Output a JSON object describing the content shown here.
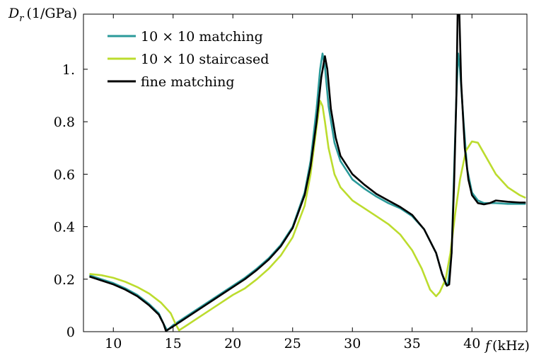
{
  "chart_data": {
    "type": "line",
    "xlabel_var": "f",
    "xlabel_unit": "(kHz)",
    "ylabel_var": "D",
    "ylabel_sub": "r",
    "ylabel_unit": "(1/GPa)",
    "xlim": [
      7.5,
      44.6
    ],
    "ylim": [
      0,
      1.21
    ],
    "xticks": [
      10,
      15,
      20,
      25,
      30,
      35,
      40
    ],
    "yticks": [
      0,
      0.2,
      0.4,
      0.6,
      0.8,
      1.0
    ],
    "ytick_labels": [
      "0",
      "0.2",
      "0.4",
      "0.6",
      "0.8",
      "1."
    ],
    "grid": false,
    "legend_position": "top-left",
    "series": [
      {
        "name": "10 × 10 matching",
        "color": "#2b9a9a",
        "points": [
          [
            8,
            0.215
          ],
          [
            9,
            0.2
          ],
          [
            10,
            0.185
          ],
          [
            11,
            0.165
          ],
          [
            12,
            0.14
          ],
          [
            13,
            0.105
          ],
          [
            13.8,
            0.07
          ],
          [
            14.2,
            0.03
          ],
          [
            14.5,
            0.005
          ],
          [
            15,
            0.025
          ],
          [
            16,
            0.055
          ],
          [
            17,
            0.085
          ],
          [
            18,
            0.115
          ],
          [
            19,
            0.145
          ],
          [
            20,
            0.175
          ],
          [
            21,
            0.205
          ],
          [
            22,
            0.24
          ],
          [
            23,
            0.28
          ],
          [
            24,
            0.33
          ],
          [
            25,
            0.4
          ],
          [
            26,
            0.53
          ],
          [
            26.5,
            0.65
          ],
          [
            27,
            0.85
          ],
          [
            27.3,
            1.0
          ],
          [
            27.5,
            1.06
          ],
          [
            27.7,
            1.01
          ],
          [
            28,
            0.86
          ],
          [
            28.5,
            0.72
          ],
          [
            29,
            0.65
          ],
          [
            30,
            0.58
          ],
          [
            31,
            0.545
          ],
          [
            32,
            0.515
          ],
          [
            33,
            0.49
          ],
          [
            34,
            0.47
          ],
          [
            35,
            0.44
          ],
          [
            36,
            0.39
          ],
          [
            37,
            0.3
          ],
          [
            37.5,
            0.22
          ],
          [
            37.8,
            0.18
          ],
          [
            38,
            0.185
          ],
          [
            38.3,
            0.3
          ],
          [
            38.5,
            0.6
          ],
          [
            38.7,
            0.9
          ],
          [
            38.85,
            1.06
          ],
          [
            39,
            1.0
          ],
          [
            39.3,
            0.8
          ],
          [
            39.6,
            0.62
          ],
          [
            40,
            0.53
          ],
          [
            40.5,
            0.5
          ],
          [
            41,
            0.49
          ],
          [
            42,
            0.49
          ],
          [
            43,
            0.487
          ],
          [
            44,
            0.487
          ],
          [
            44.5,
            0.487
          ]
        ]
      },
      {
        "name": "10 × 10 staircased",
        "color": "#bcdc2e",
        "points": [
          [
            8,
            0.22
          ],
          [
            9,
            0.215
          ],
          [
            10,
            0.205
          ],
          [
            11,
            0.19
          ],
          [
            12,
            0.17
          ],
          [
            13,
            0.145
          ],
          [
            14,
            0.11
          ],
          [
            14.8,
            0.07
          ],
          [
            15.2,
            0.03
          ],
          [
            15.5,
            0.005
          ],
          [
            16,
            0.02
          ],
          [
            17,
            0.05
          ],
          [
            18,
            0.08
          ],
          [
            19,
            0.11
          ],
          [
            20,
            0.14
          ],
          [
            21,
            0.165
          ],
          [
            22,
            0.2
          ],
          [
            23,
            0.24
          ],
          [
            24,
            0.29
          ],
          [
            25,
            0.36
          ],
          [
            26,
            0.48
          ],
          [
            26.5,
            0.6
          ],
          [
            27,
            0.78
          ],
          [
            27.3,
            0.88
          ],
          [
            27.5,
            0.86
          ],
          [
            27.7,
            0.8
          ],
          [
            28,
            0.7
          ],
          [
            28.5,
            0.6
          ],
          [
            29,
            0.55
          ],
          [
            30,
            0.5
          ],
          [
            31,
            0.47
          ],
          [
            32,
            0.44
          ],
          [
            33,
            0.41
          ],
          [
            34,
            0.37
          ],
          [
            35,
            0.31
          ],
          [
            35.8,
            0.24
          ],
          [
            36.5,
            0.16
          ],
          [
            37,
            0.135
          ],
          [
            37.3,
            0.15
          ],
          [
            37.8,
            0.2
          ],
          [
            38.2,
            0.3
          ],
          [
            38.6,
            0.45
          ],
          [
            39,
            0.58
          ],
          [
            39.5,
            0.69
          ],
          [
            40,
            0.725
          ],
          [
            40.5,
            0.72
          ],
          [
            41,
            0.68
          ],
          [
            42,
            0.6
          ],
          [
            43,
            0.55
          ],
          [
            44,
            0.52
          ],
          [
            44.5,
            0.51
          ]
        ]
      },
      {
        "name": "fine matching",
        "color": "#000000",
        "points": [
          [
            8,
            0.21
          ],
          [
            9,
            0.195
          ],
          [
            10,
            0.18
          ],
          [
            11,
            0.16
          ],
          [
            12,
            0.135
          ],
          [
            13,
            0.1
          ],
          [
            13.8,
            0.065
          ],
          [
            14.2,
            0.03
          ],
          [
            14.4,
            0.003
          ],
          [
            15,
            0.02
          ],
          [
            16,
            0.05
          ],
          [
            17,
            0.08
          ],
          [
            18,
            0.11
          ],
          [
            19,
            0.14
          ],
          [
            20,
            0.17
          ],
          [
            21,
            0.2
          ],
          [
            22,
            0.235
          ],
          [
            23,
            0.275
          ],
          [
            24,
            0.325
          ],
          [
            25,
            0.395
          ],
          [
            26,
            0.52
          ],
          [
            26.5,
            0.63
          ],
          [
            27,
            0.8
          ],
          [
            27.4,
            0.97
          ],
          [
            27.7,
            1.05
          ],
          [
            27.9,
            1.0
          ],
          [
            28.2,
            0.85
          ],
          [
            28.6,
            0.74
          ],
          [
            29,
            0.67
          ],
          [
            30,
            0.6
          ],
          [
            31,
            0.56
          ],
          [
            32,
            0.525
          ],
          [
            33,
            0.5
          ],
          [
            34,
            0.475
          ],
          [
            35,
            0.445
          ],
          [
            36,
            0.39
          ],
          [
            37,
            0.3
          ],
          [
            37.5,
            0.22
          ],
          [
            37.9,
            0.175
          ],
          [
            38.1,
            0.18
          ],
          [
            38.3,
            0.3
          ],
          [
            38.5,
            0.55
          ],
          [
            38.7,
            0.9
          ],
          [
            38.8,
            1.21
          ],
          [
            38.95,
            1.21
          ],
          [
            39.1,
            0.95
          ],
          [
            39.4,
            0.7
          ],
          [
            39.7,
            0.58
          ],
          [
            40,
            0.52
          ],
          [
            40.5,
            0.49
          ],
          [
            41,
            0.485
          ],
          [
            41.5,
            0.49
          ],
          [
            42,
            0.5
          ],
          [
            43,
            0.495
          ],
          [
            44,
            0.492
          ],
          [
            44.5,
            0.492
          ]
        ]
      }
    ]
  }
}
